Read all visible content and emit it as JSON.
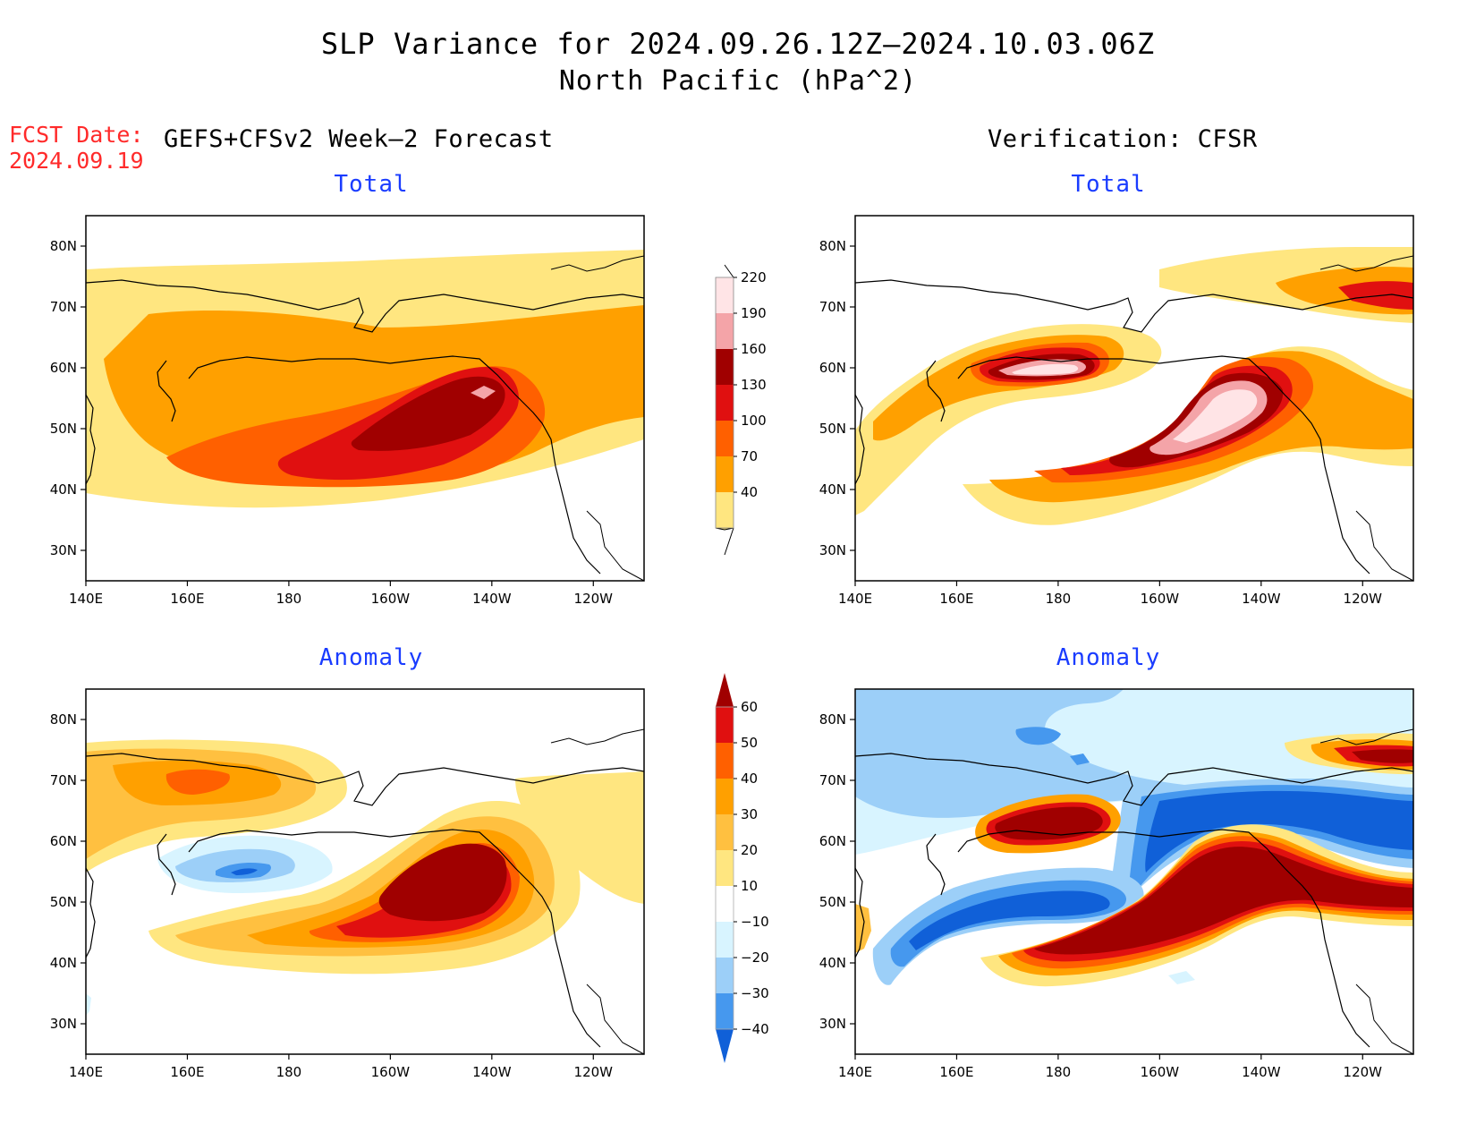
{
  "title": {
    "line1": "SLP Variance for 2024.09.26.12Z–2024.10.03.06Z",
    "line2": "North Pacific (hPa^2)"
  },
  "fcst_date": {
    "label": "FCST Date:",
    "value": "2024.09.19"
  },
  "left_header": "GEFS+CFSv2 Week–2 Forecast",
  "right_header": "Verification: CFSR",
  "panels": {
    "forecast_total": "Total",
    "forecast_anomaly": "Anomaly",
    "verification_total": "Total",
    "verification_anomaly": "Anomaly"
  },
  "axes": {
    "lat_labels": [
      "80N",
      "70N",
      "60N",
      "50N",
      "40N",
      "30N"
    ],
    "lat_values": [
      80,
      70,
      60,
      50,
      40,
      30
    ],
    "lon_labels": [
      "140E",
      "160E",
      "180",
      "160W",
      "140W",
      "120W"
    ],
    "lon_values": [
      140,
      160,
      180,
      200,
      220,
      240
    ],
    "lon_range": [
      140,
      250
    ],
    "lat_range": [
      25,
      85
    ]
  },
  "colorbar_total": {
    "levels": [
      "40",
      "70",
      "100",
      "130",
      "160",
      "190",
      "220"
    ],
    "colors": [
      "#ffe680",
      "#ffa000",
      "#ff6000",
      "#e01010",
      "#a00000",
      "#f4a4a8",
      "#ffe4e6"
    ]
  },
  "colorbar_anomaly": {
    "levels": [
      "60",
      "50",
      "40",
      "30",
      "20",
      "10",
      "−10",
      "−20",
      "−30",
      "−40"
    ],
    "colors": [
      "#a00000",
      "#e01010",
      "#ff6000",
      "#ffa000",
      "#ffc040",
      "#ffe680",
      "#ffffff",
      "#d8f4ff",
      "#9ccff8",
      "#4698ee",
      "#1060d8"
    ]
  }
}
